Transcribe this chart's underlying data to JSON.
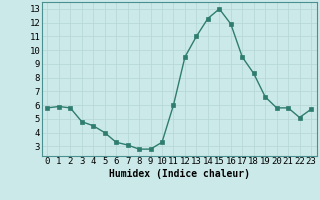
{
  "x": [
    0,
    1,
    2,
    3,
    4,
    5,
    6,
    7,
    8,
    9,
    10,
    11,
    12,
    13,
    14,
    15,
    16,
    17,
    18,
    19,
    20,
    21,
    22,
    23
  ],
  "y": [
    5.8,
    5.9,
    5.8,
    4.8,
    4.5,
    4.0,
    3.3,
    3.1,
    2.8,
    2.8,
    3.3,
    6.0,
    9.5,
    11.0,
    12.3,
    13.0,
    11.9,
    9.5,
    8.3,
    6.6,
    5.8,
    5.8,
    5.1,
    5.7
  ],
  "line_color": "#2e7d6e",
  "marker": "s",
  "marker_size": 2.5,
  "linewidth": 1.0,
  "xlabel": "Humidex (Indice chaleur)",
  "xlim": [
    -0.5,
    23.5
  ],
  "ylim": [
    2.3,
    13.5
  ],
  "yticks": [
    3,
    4,
    5,
    6,
    7,
    8,
    9,
    10,
    11,
    12,
    13
  ],
  "xticks": [
    0,
    1,
    2,
    3,
    4,
    5,
    6,
    7,
    8,
    9,
    10,
    11,
    12,
    13,
    14,
    15,
    16,
    17,
    18,
    19,
    20,
    21,
    22,
    23
  ],
  "bg_color": "#cce9e9",
  "grid_color": "#b8d8d8",
  "axis_label_fontsize": 7,
  "tick_fontsize": 6.5
}
